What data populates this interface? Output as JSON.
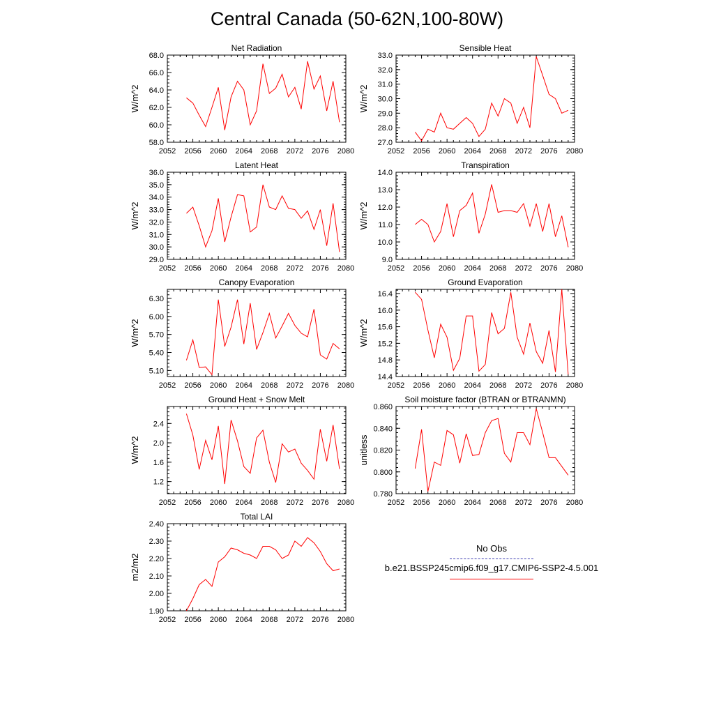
{
  "title": "Central Canada (50-62N,100-80W)",
  "legend": {
    "obs_label": "No Obs",
    "obs_color": "#3b3bb0",
    "obs_style": "dashed",
    "model_label": "b.e21.BSSP245cmip6.f09_g17.CMIP6-SSP2-4.5.001",
    "model_color": "#ff0000",
    "model_style": "solid"
  },
  "chart_data": [
    {
      "type": "line",
      "title": "Net Radiation",
      "ylabel": "W/m^2",
      "xlim": [
        2052,
        2080
      ],
      "ylim": [
        58.0,
        68.0
      ],
      "xticks": [
        "2052",
        "2056",
        "2060",
        "2064",
        "2068",
        "2072",
        "2076",
        "2080"
      ],
      "yticks": [
        "58.0",
        "60.0",
        "62.0",
        "64.0",
        "66.0",
        "68.0"
      ],
      "series": [
        {
          "color": "#ff0000",
          "x": [
            2055,
            2056,
            2057,
            2058,
            2059,
            2060,
            2061,
            2062,
            2063,
            2064,
            2065,
            2066,
            2067,
            2068,
            2069,
            2070,
            2071,
            2072,
            2073,
            2074,
            2075,
            2076,
            2077,
            2078,
            2079
          ],
          "y": [
            63.1,
            62.5,
            61.1,
            59.8,
            62.0,
            64.3,
            59.4,
            63.2,
            65.0,
            64.0,
            60.0,
            61.6,
            67.0,
            63.6,
            64.2,
            65.8,
            63.2,
            64.3,
            61.8,
            67.3,
            64.1,
            65.6,
            61.6,
            65.0,
            60.3
          ]
        }
      ]
    },
    {
      "type": "line",
      "title": "Sensible Heat",
      "ylabel": "W/m^2",
      "xlim": [
        2052,
        2080
      ],
      "ylim": [
        27.0,
        33.0
      ],
      "xticks": [
        "2052",
        "2056",
        "2060",
        "2064",
        "2068",
        "2072",
        "2076",
        "2080"
      ],
      "yticks": [
        "27.0",
        "28.0",
        "29.0",
        "30.0",
        "31.0",
        "32.0",
        "33.0"
      ],
      "series": [
        {
          "color": "#ff0000",
          "x": [
            2055,
            2056,
            2057,
            2058,
            2059,
            2060,
            2061,
            2062,
            2063,
            2064,
            2065,
            2066,
            2067,
            2068,
            2069,
            2070,
            2071,
            2072,
            2073,
            2074,
            2075,
            2076,
            2077,
            2078,
            2079
          ],
          "y": [
            27.7,
            27.1,
            27.9,
            27.7,
            29.0,
            28.0,
            27.9,
            28.3,
            28.7,
            28.3,
            27.4,
            27.9,
            29.7,
            28.8,
            30.0,
            29.7,
            28.3,
            29.4,
            28.0,
            32.9,
            31.6,
            30.3,
            30.0,
            29.0,
            29.2
          ]
        }
      ]
    },
    {
      "type": "line",
      "title": "Latent Heat",
      "ylabel": "W/m^2",
      "xlim": [
        2052,
        2080
      ],
      "ylim": [
        29.0,
        36.0
      ],
      "xticks": [
        "2052",
        "2056",
        "2060",
        "2064",
        "2068",
        "2072",
        "2076",
        "2080"
      ],
      "yticks": [
        "29.0",
        "30.0",
        "31.0",
        "32.0",
        "33.0",
        "34.0",
        "35.0",
        "36.0"
      ],
      "series": [
        {
          "color": "#ff0000",
          "x": [
            2055,
            2056,
            2057,
            2058,
            2059,
            2060,
            2061,
            2062,
            2063,
            2064,
            2065,
            2066,
            2067,
            2068,
            2069,
            2070,
            2071,
            2072,
            2073,
            2074,
            2075,
            2076,
            2077,
            2078,
            2079
          ],
          "y": [
            32.7,
            33.2,
            31.7,
            30.0,
            31.3,
            33.9,
            30.4,
            32.4,
            34.2,
            34.1,
            31.2,
            31.6,
            35.0,
            33.2,
            33.0,
            34.1,
            33.1,
            33.0,
            32.3,
            32.9,
            31.4,
            33.0,
            30.1,
            33.5,
            29.6
          ]
        }
      ]
    },
    {
      "type": "line",
      "title": "Transpiration",
      "ylabel": "W/m^2",
      "xlim": [
        2052,
        2080
      ],
      "ylim": [
        9.0,
        14.0
      ],
      "xticks": [
        "2052",
        "2056",
        "2060",
        "2064",
        "2068",
        "2072",
        "2076",
        "2080"
      ],
      "yticks": [
        "9.0",
        "10.0",
        "11.0",
        "12.0",
        "13.0",
        "14.0"
      ],
      "series": [
        {
          "color": "#ff0000",
          "x": [
            2055,
            2056,
            2057,
            2058,
            2059,
            2060,
            2061,
            2062,
            2063,
            2064,
            2065,
            2066,
            2067,
            2068,
            2069,
            2070,
            2071,
            2072,
            2073,
            2074,
            2075,
            2076,
            2077,
            2078,
            2079
          ],
          "y": [
            11.0,
            11.3,
            11.0,
            10.0,
            10.6,
            12.2,
            10.3,
            11.8,
            12.1,
            12.8,
            10.5,
            11.6,
            13.3,
            11.7,
            11.8,
            11.8,
            11.7,
            12.2,
            10.9,
            12.2,
            10.6,
            12.2,
            10.3,
            11.5,
            9.7
          ]
        }
      ]
    },
    {
      "type": "line",
      "title": "Canopy Evaporation",
      "ylabel": "W/m^2",
      "xlim": [
        2052,
        2080
      ],
      "ylim": [
        5.0,
        6.45
      ],
      "xticks": [
        "2052",
        "2056",
        "2060",
        "2064",
        "2068",
        "2072",
        "2076",
        "2080"
      ],
      "yticks": [
        "5.10",
        "5.40",
        "5.70",
        "6.00",
        "6.30"
      ],
      "series": [
        {
          "color": "#ff0000",
          "x": [
            2055,
            2056,
            2057,
            2058,
            2059,
            2060,
            2061,
            2062,
            2063,
            2064,
            2065,
            2066,
            2067,
            2068,
            2069,
            2070,
            2071,
            2072,
            2073,
            2074,
            2075,
            2076,
            2077,
            2078,
            2079
          ],
          "y": [
            5.27,
            5.61,
            5.15,
            5.16,
            5.03,
            6.28,
            5.5,
            5.82,
            6.28,
            5.54,
            6.22,
            5.45,
            5.73,
            6.05,
            5.64,
            5.84,
            6.05,
            5.85,
            5.72,
            5.66,
            6.12,
            5.36,
            5.29,
            5.55,
            5.46
          ]
        }
      ]
    },
    {
      "type": "line",
      "title": "Ground Evaporation",
      "ylabel": "W/m^2",
      "xlim": [
        2052,
        2080
      ],
      "ylim": [
        14.4,
        16.5
      ],
      "xticks": [
        "2052",
        "2056",
        "2060",
        "2064",
        "2068",
        "2072",
        "2076",
        "2080"
      ],
      "yticks": [
        "14.4",
        "14.8",
        "15.2",
        "15.6",
        "16.0",
        "16.4"
      ],
      "series": [
        {
          "color": "#ff0000",
          "x": [
            2055,
            2056,
            2057,
            2058,
            2059,
            2060,
            2061,
            2062,
            2063,
            2064,
            2065,
            2066,
            2067,
            2068,
            2069,
            2070,
            2071,
            2072,
            2073,
            2074,
            2075,
            2076,
            2077,
            2078,
            2079
          ],
          "y": [
            16.43,
            16.26,
            15.52,
            14.85,
            15.66,
            15.35,
            14.55,
            14.84,
            15.86,
            15.86,
            14.53,
            14.69,
            15.94,
            15.43,
            15.56,
            16.43,
            15.35,
            14.94,
            15.69,
            15.0,
            14.72,
            15.51,
            14.51,
            16.5,
            14.45
          ]
        }
      ]
    },
    {
      "type": "line",
      "title": "Ground Heat + Snow Melt",
      "ylabel": "W/m^2",
      "xlim": [
        2052,
        2080
      ],
      "ylim": [
        0.95,
        2.75
      ],
      "xticks": [
        "2052",
        "2056",
        "2060",
        "2064",
        "2068",
        "2072",
        "2076",
        "2080"
      ],
      "yticks": [
        "1.2",
        "1.6",
        "2.0",
        "2.4"
      ],
      "series": [
        {
          "color": "#ff0000",
          "x": [
            2055,
            2056,
            2057,
            2058,
            2059,
            2060,
            2061,
            2062,
            2063,
            2064,
            2065,
            2066,
            2067,
            2068,
            2069,
            2070,
            2071,
            2072,
            2073,
            2074,
            2075,
            2076,
            2077,
            2078,
            2079
          ],
          "y": [
            2.6,
            2.16,
            1.45,
            2.05,
            1.65,
            2.35,
            1.15,
            2.47,
            2.04,
            1.51,
            1.37,
            2.1,
            2.26,
            1.6,
            1.18,
            1.98,
            1.81,
            1.87,
            1.58,
            1.43,
            1.25,
            2.28,
            1.62,
            2.37,
            1.46
          ]
        }
      ]
    },
    {
      "type": "line",
      "title": "Soil moisture factor (BTRAN or BTRANMN)",
      "ylabel": "unitless",
      "xlim": [
        2052,
        2080
      ],
      "ylim": [
        0.78,
        0.86
      ],
      "xticks": [
        "2052",
        "2056",
        "2060",
        "2064",
        "2068",
        "2072",
        "2076",
        "2080"
      ],
      "yticks": [
        "0.780",
        "0.800",
        "0.820",
        "0.840",
        "0.860"
      ],
      "series": [
        {
          "color": "#ff0000",
          "x": [
            2055,
            2056,
            2057,
            2058,
            2059,
            2060,
            2061,
            2062,
            2063,
            2064,
            2065,
            2066,
            2067,
            2068,
            2069,
            2070,
            2071,
            2072,
            2073,
            2074,
            2075,
            2076,
            2077,
            2078,
            2079
          ],
          "y": [
            0.803,
            0.839,
            0.782,
            0.809,
            0.806,
            0.838,
            0.834,
            0.808,
            0.835,
            0.815,
            0.816,
            0.836,
            0.847,
            0.849,
            0.817,
            0.809,
            0.836,
            0.836,
            0.825,
            0.858,
            0.836,
            0.813,
            0.813,
            0.805,
            0.797
          ]
        }
      ]
    },
    {
      "type": "line",
      "title": "Total LAI",
      "ylabel": "m2/m2",
      "xlim": [
        2052,
        2080
      ],
      "ylim": [
        1.9,
        2.4
      ],
      "xticks": [
        "2052",
        "2056",
        "2060",
        "2064",
        "2068",
        "2072",
        "2076",
        "2080"
      ],
      "yticks": [
        "1.90",
        "2.00",
        "2.10",
        "2.20",
        "2.30",
        "2.40"
      ],
      "series": [
        {
          "color": "#ff0000",
          "x": [
            2055,
            2056,
            2057,
            2058,
            2059,
            2060,
            2061,
            2062,
            2063,
            2064,
            2065,
            2066,
            2067,
            2068,
            2069,
            2070,
            2071,
            2072,
            2073,
            2074,
            2075,
            2076,
            2077,
            2078,
            2079
          ],
          "y": [
            1.9,
            1.97,
            2.05,
            2.08,
            2.04,
            2.18,
            2.21,
            2.26,
            2.25,
            2.23,
            2.22,
            2.2,
            2.27,
            2.27,
            2.25,
            2.2,
            2.22,
            2.3,
            2.27,
            2.32,
            2.29,
            2.24,
            2.17,
            2.13,
            2.14
          ]
        }
      ]
    }
  ]
}
